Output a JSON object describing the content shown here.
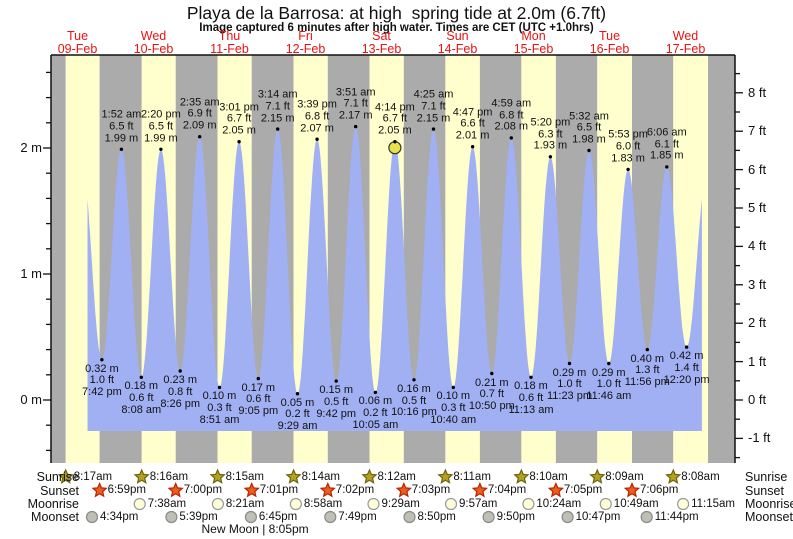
{
  "header": {
    "title": "Playa de la Barrosa: at high  spring tide at 2.0m (6.7ft)",
    "subtitle": "Image captured 6 minutes after high water. Times are CET (UTC +1.0hrs)"
  },
  "colors": {
    "day_label_red": "#ee1111",
    "night_band": "#ababab",
    "daylight_band": "#ffffcd",
    "tide_fill": "#a1b0f3",
    "axis": "#111111",
    "current_marker_fill": "#e7e24a",
    "current_marker_stroke": "#333333",
    "sunrise_star_fill": "#b3a11f",
    "sunrise_star_stroke": "#6f6410",
    "sunset_star_fill": "#e95f1f",
    "sunset_star_stroke": "#bb2200",
    "moonrise_fill": "#ffffd9",
    "moonrise_stroke": "#9a9a9a",
    "moonset_fill": "#bfbfb4",
    "moonset_stroke": "#8a8a8a"
  },
  "chart_data": {
    "type": "area",
    "title": "Playa de la Barrosa: at high  spring tide at 2.0m (6.7ft)",
    "subtitle": "Image captured 6 minutes after high water. Times are CET (UTC +1.0hrs)",
    "y_axis_left": {
      "unit": "m",
      "major_ticks": [
        0,
        1,
        2
      ]
    },
    "y_axis_right": {
      "unit": "ft",
      "major_ticks": [
        -1,
        0,
        1,
        2,
        3,
        4,
        5,
        6,
        7,
        8
      ]
    },
    "days": [
      {
        "weekday": "Tue",
        "date": "09-Feb"
      },
      {
        "weekday": "Wed",
        "date": "10-Feb"
      },
      {
        "weekday": "Thu",
        "date": "11-Feb"
      },
      {
        "weekday": "Fri",
        "date": "12-Feb"
      },
      {
        "weekday": "Sat",
        "date": "13-Feb"
      },
      {
        "weekday": "Sun",
        "date": "14-Feb"
      },
      {
        "weekday": "Mon",
        "date": "15-Feb"
      },
      {
        "weekday": "Tue",
        "date": "16-Feb"
      },
      {
        "weekday": "Wed",
        "date": "17-Feb"
      }
    ],
    "tide_events": [
      {
        "day": 0,
        "time": "7:42 pm",
        "m": 0.32,
        "ft": 1.0,
        "type": "low"
      },
      {
        "day": 1,
        "time": "1:52 am",
        "m": 1.99,
        "ft": 6.5,
        "type": "high"
      },
      {
        "day": 1,
        "time": "8:08 am",
        "m": 0.18,
        "ft": 0.6,
        "type": "low"
      },
      {
        "day": 1,
        "time": "2:20 pm",
        "m": 1.99,
        "ft": 6.5,
        "type": "high"
      },
      {
        "day": 1,
        "time": "8:26 pm",
        "m": 0.23,
        "ft": 0.8,
        "type": "low"
      },
      {
        "day": 2,
        "time": "2:35 am",
        "m": 2.09,
        "ft": 6.9,
        "type": "high"
      },
      {
        "day": 2,
        "time": "8:51 am",
        "m": 0.1,
        "ft": 0.3,
        "type": "low"
      },
      {
        "day": 2,
        "time": "3:01 pm",
        "m": 2.05,
        "ft": 6.7,
        "type": "high"
      },
      {
        "day": 2,
        "time": "9:05 pm",
        "m": 0.17,
        "ft": 0.6,
        "type": "low"
      },
      {
        "day": 3,
        "time": "3:14 am",
        "m": 2.15,
        "ft": 7.1,
        "type": "high"
      },
      {
        "day": 3,
        "time": "9:29 am",
        "m": 0.05,
        "ft": 0.2,
        "type": "low"
      },
      {
        "day": 3,
        "time": "3:39 pm",
        "m": 2.07,
        "ft": 6.8,
        "type": "high"
      },
      {
        "day": 3,
        "time": "9:42 pm",
        "m": 0.15,
        "ft": 0.5,
        "type": "low"
      },
      {
        "day": 4,
        "time": "3:51 am",
        "m": 2.17,
        "ft": 7.1,
        "type": "high"
      },
      {
        "day": 4,
        "time": "10:05 am",
        "m": 0.06,
        "ft": 0.2,
        "type": "low"
      },
      {
        "day": 4,
        "time": "4:14 pm",
        "m": 2.05,
        "ft": 6.7,
        "type": "high",
        "current": true
      },
      {
        "day": 4,
        "time": "10:16 pm",
        "m": 0.16,
        "ft": 0.5,
        "type": "low"
      },
      {
        "day": 5,
        "time": "4:25 am",
        "m": 2.15,
        "ft": 7.1,
        "type": "high"
      },
      {
        "day": 5,
        "time": "10:40 am",
        "m": 0.1,
        "ft": 0.3,
        "type": "low"
      },
      {
        "day": 5,
        "time": "4:47 pm",
        "m": 2.01,
        "ft": 6.6,
        "type": "high"
      },
      {
        "day": 5,
        "time": "10:50 pm",
        "m": 0.21,
        "ft": 0.7,
        "type": "low"
      },
      {
        "day": 6,
        "time": "4:59 am",
        "m": 2.08,
        "ft": 6.8,
        "type": "high"
      },
      {
        "day": 6,
        "time": "11:13 am",
        "m": 0.18,
        "ft": 0.6,
        "type": "low"
      },
      {
        "day": 6,
        "time": "5:20 pm",
        "m": 1.93,
        "ft": 6.3,
        "type": "high"
      },
      {
        "day": 6,
        "time": "11:23 pm",
        "m": 0.29,
        "ft": 1.0,
        "type": "low"
      },
      {
        "day": 7,
        "time": "5:32 am",
        "m": 1.98,
        "ft": 6.5,
        "type": "high"
      },
      {
        "day": 7,
        "time": "11:46 am",
        "m": 0.29,
        "ft": 1.0,
        "type": "low"
      },
      {
        "day": 7,
        "time": "5:53 pm",
        "m": 1.83,
        "ft": 6.0,
        "type": "high"
      },
      {
        "day": 7,
        "time": "11:56 pm",
        "m": 0.4,
        "ft": 1.3,
        "type": "low"
      },
      {
        "day": 8,
        "time": "6:06 am",
        "m": 1.85,
        "ft": 6.1,
        "type": "high"
      },
      {
        "day": 8,
        "time": "12:20 pm",
        "m": 0.42,
        "ft": 1.4,
        "type": "low"
      }
    ],
    "astronomy": [
      {
        "key": "sunrise",
        "label": "Sunrise",
        "icon": "sunrise-star-icon",
        "events": [
          {
            "day": 0,
            "time": "8:17am"
          },
          {
            "day": 1,
            "time": "8:16am"
          },
          {
            "day": 2,
            "time": "8:15am"
          },
          {
            "day": 3,
            "time": "8:14am"
          },
          {
            "day": 4,
            "time": "8:12am"
          },
          {
            "day": 5,
            "time": "8:11am"
          },
          {
            "day": 6,
            "time": "8:10am"
          },
          {
            "day": 7,
            "time": "8:09am"
          },
          {
            "day": 8,
            "time": "8:08am"
          }
        ]
      },
      {
        "key": "sunset",
        "label": "Sunset",
        "icon": "sunset-star-icon",
        "events": [
          {
            "day": 0,
            "time": "6:59pm"
          },
          {
            "day": 1,
            "time": "7:00pm"
          },
          {
            "day": 2,
            "time": "7:01pm"
          },
          {
            "day": 3,
            "time": "7:02pm"
          },
          {
            "day": 4,
            "time": "7:03pm"
          },
          {
            "day": 5,
            "time": "7:04pm"
          },
          {
            "day": 6,
            "time": "7:05pm"
          },
          {
            "day": 7,
            "time": "7:06pm"
          }
        ]
      },
      {
        "key": "moonrise",
        "label": "Moonrise",
        "icon": "moonrise-icon",
        "events": [
          {
            "day": 1,
            "time": "7:38am"
          },
          {
            "day": 2,
            "time": "8:21am"
          },
          {
            "day": 3,
            "time": "8:58am"
          },
          {
            "day": 4,
            "time": "9:29am"
          },
          {
            "day": 5,
            "time": "9:57am"
          },
          {
            "day": 6,
            "time": "10:24am"
          },
          {
            "day": 7,
            "time": "10:49am"
          },
          {
            "day": 8,
            "time": "11:15am"
          }
        ]
      },
      {
        "key": "moonset",
        "label": "Moonset",
        "icon": "moonset-icon",
        "events": [
          {
            "day": 0,
            "time": "4:34pm"
          },
          {
            "day": 1,
            "time": "5:39pm"
          },
          {
            "day": 2,
            "time": "6:45pm"
          },
          {
            "day": 3,
            "time": "7:49pm"
          },
          {
            "day": 4,
            "time": "8:50pm"
          },
          {
            "day": 5,
            "time": "9:50pm"
          },
          {
            "day": 6,
            "time": "10:47pm"
          },
          {
            "day": 7,
            "time": "11:44pm"
          }
        ]
      }
    ],
    "new_moon": {
      "label": "New Moon",
      "separator": "|",
      "time": "8:05pm",
      "day": 2,
      "hour": "8:05pm"
    }
  }
}
